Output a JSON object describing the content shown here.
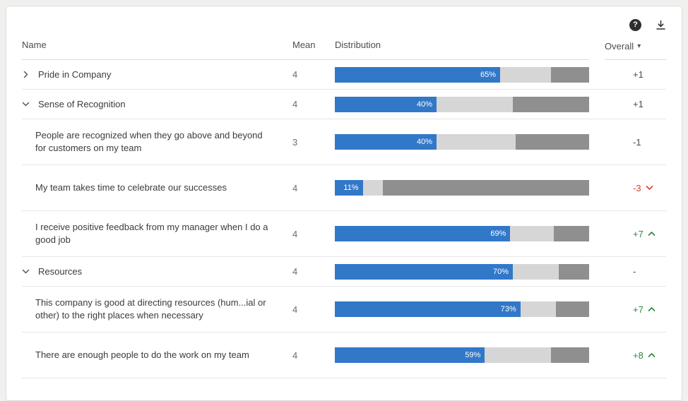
{
  "toolbar": {
    "help_glyph": "?",
    "sort_caret": "▾"
  },
  "table": {
    "columns": {
      "name": "Name",
      "mean": "Mean",
      "distribution": "Distribution",
      "overall": "Overall"
    },
    "rows": [
      {
        "group": true,
        "expanded": false,
        "name": "Pride in Company",
        "mean": "4",
        "favorable": 65,
        "neutral": 20,
        "unfavorable": 15,
        "label": "65%",
        "overall": "+1",
        "trend": "none"
      },
      {
        "group": true,
        "expanded": true,
        "name": "Sense of Recognition",
        "mean": "4",
        "favorable": 40,
        "neutral": 30,
        "unfavorable": 30,
        "label": "40%",
        "overall": "+1",
        "trend": "none"
      },
      {
        "group": false,
        "name": "People are recognized when they go above and beyond for customers on my team",
        "mean": "3",
        "favorable": 40,
        "neutral": 31,
        "unfavorable": 29,
        "label": "40%",
        "overall": "-1",
        "trend": "none"
      },
      {
        "group": false,
        "name": "My team takes time to celebrate our successes",
        "mean": "4",
        "favorable": 11,
        "neutral": 8,
        "unfavorable": 81,
        "label": "11%",
        "overall": "-3",
        "trend": "down"
      },
      {
        "group": false,
        "name": "I receive positive feedback from my manager when I do a good job",
        "mean": "4",
        "favorable": 69,
        "neutral": 17,
        "unfavorable": 14,
        "label": "69%",
        "overall": "+7",
        "trend": "up"
      },
      {
        "group": true,
        "expanded": true,
        "name": "Resources",
        "mean": "4",
        "favorable": 70,
        "neutral": 18,
        "unfavorable": 12,
        "label": "70%",
        "overall": "-",
        "trend": "none"
      },
      {
        "group": false,
        "name": "This company is good at directing resources (hum...ial or other) to the right places when necessary",
        "mean": "4",
        "favorable": 73,
        "neutral": 14,
        "unfavorable": 13,
        "label": "73%",
        "overall": "+7",
        "trend": "up"
      },
      {
        "group": false,
        "name": "There are enough people to do the work on my team",
        "mean": "4",
        "favorable": 59,
        "neutral": 26,
        "unfavorable": 15,
        "label": "59%",
        "overall": "+8",
        "trend": "up"
      }
    ]
  },
  "colors": {
    "favorable": "#3278c8",
    "neutral": "#d6d6d6",
    "unfavorable": "#8f8f8f",
    "positive": "#2e8540",
    "negative": "#d9402c",
    "chevron": "#555555"
  }
}
